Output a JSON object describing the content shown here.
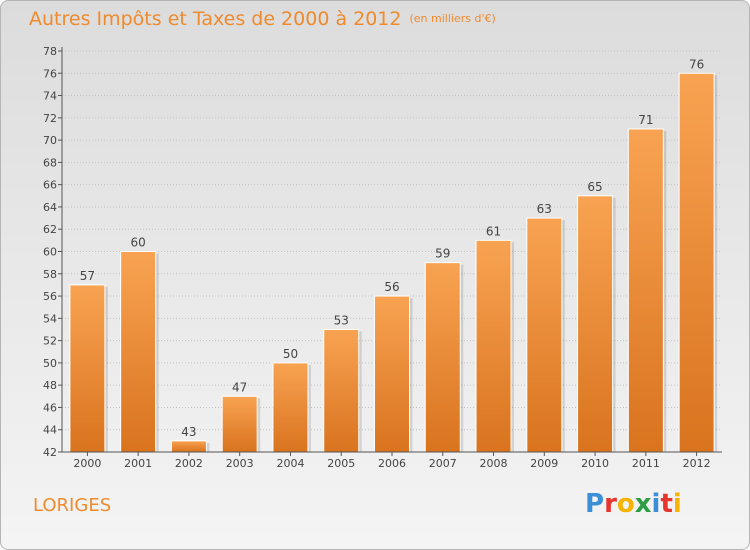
{
  "header": {
    "title": "Autres Impôts et Taxes de 2000 à 2012",
    "unit": "(en milliers d'€)"
  },
  "commune": "LORIGES",
  "logo": {
    "text": "Proxiti",
    "letters": [
      {
        "char": "P",
        "color": "#3b8fd6"
      },
      {
        "char": "r",
        "color": "#e5352d"
      },
      {
        "char": "o",
        "color": "#f6b400"
      },
      {
        "char": "x",
        "color": "#2e9e44"
      },
      {
        "char": "i",
        "color": "#3b8fd6"
      },
      {
        "char": "t",
        "color": "#e5352d"
      },
      {
        "char": "i",
        "color": "#f6b400"
      }
    ]
  },
  "colors": {
    "accent": "#ef8a2d",
    "bar_top": "#f8a352",
    "bar_bottom": "#d9731e"
  },
  "chart_data": {
    "type": "bar",
    "title": "Autres Impôts et Taxes de 2000 à 2012",
    "subtitle": "(en milliers d'€)",
    "categories": [
      "2000",
      "2001",
      "2002",
      "2003",
      "2004",
      "2005",
      "2006",
      "2007",
      "2008",
      "2009",
      "2010",
      "2011",
      "2012"
    ],
    "values": [
      57,
      60,
      43,
      47,
      50,
      53,
      56,
      59,
      61,
      63,
      65,
      71,
      76
    ],
    "ylim": [
      42,
      78
    ],
    "yticks": [
      42,
      44,
      46,
      48,
      50,
      52,
      54,
      56,
      58,
      60,
      62,
      64,
      66,
      68,
      70,
      72,
      74,
      76,
      78
    ],
    "grid": true,
    "xlabel": "",
    "ylabel": ""
  }
}
